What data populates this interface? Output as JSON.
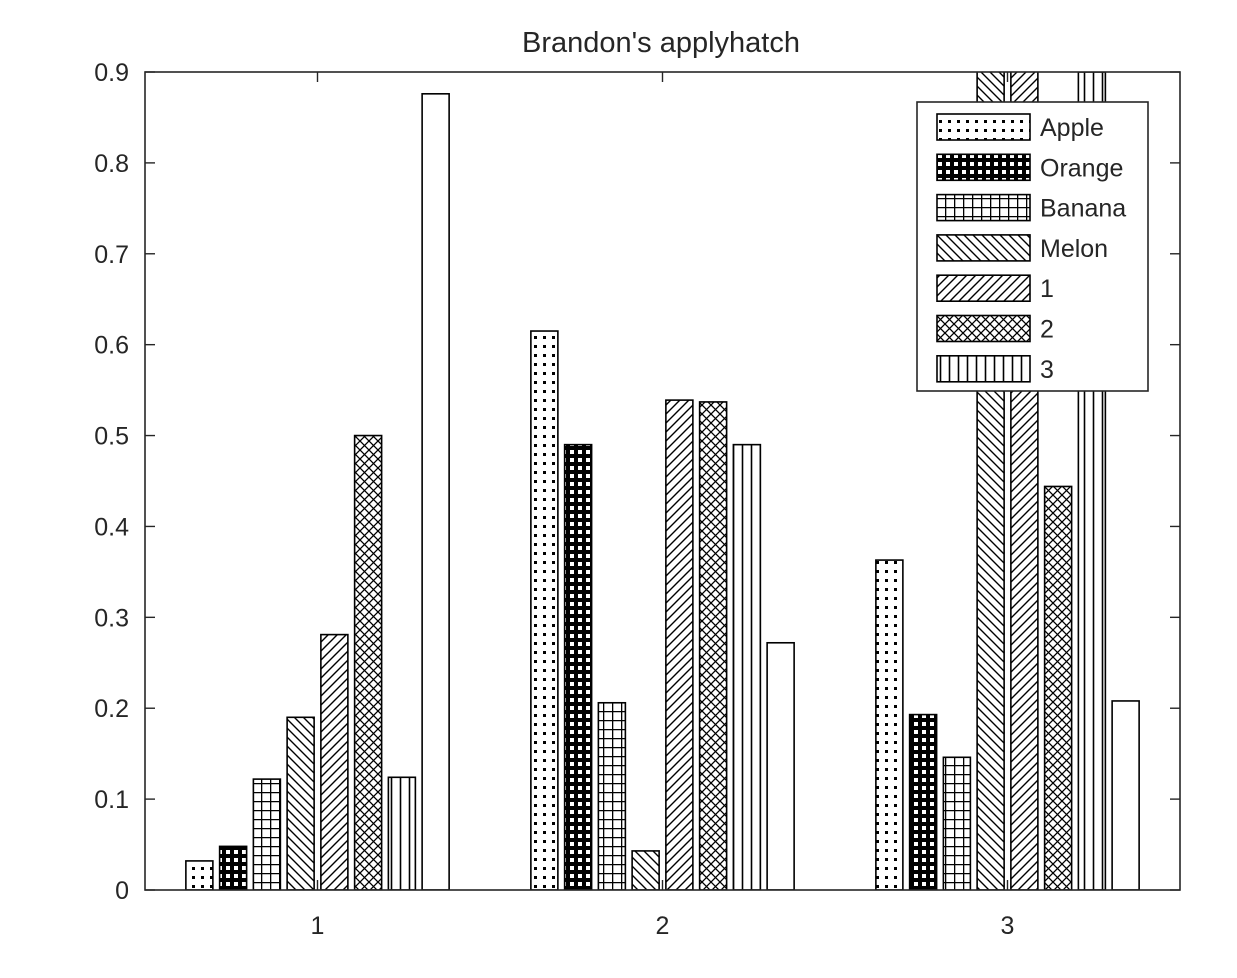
{
  "chart_data": {
    "type": "bar",
    "title": "Brandon's applyhatch",
    "xlabel": "",
    "ylabel": "",
    "categories": [
      "1",
      "2",
      "3"
    ],
    "ylim": [
      0,
      0.9
    ],
    "yticks": [
      "0",
      "0.1",
      "0.2",
      "0.3",
      "0.4",
      "0.5",
      "0.6",
      "0.7",
      "0.8",
      "0.9"
    ],
    "grid": false,
    "legend_position": "top-right",
    "series": [
      {
        "name": "Apple",
        "hatch": "dots",
        "values": [
          0.032,
          0.615,
          0.363
        ]
      },
      {
        "name": "Orange",
        "hatch": "black-grid",
        "values": [
          0.048,
          0.49,
          0.193
        ]
      },
      {
        "name": "Banana",
        "hatch": "grid",
        "values": [
          0.122,
          0.206,
          0.146
        ]
      },
      {
        "name": "Melon",
        "hatch": "backslash",
        "values": [
          0.19,
          0.043,
          0.94
        ]
      },
      {
        "name": "1",
        "hatch": "slash",
        "values": [
          0.281,
          0.539,
          0.92
        ]
      },
      {
        "name": "2",
        "hatch": "cross",
        "values": [
          0.5,
          0.537,
          0.444
        ]
      },
      {
        "name": "3",
        "hatch": "vertical",
        "values": [
          0.124,
          0.49,
          0.9
        ]
      },
      {
        "name": "",
        "hatch": "none",
        "values": [
          0.876,
          0.272,
          0.208
        ]
      }
    ]
  }
}
